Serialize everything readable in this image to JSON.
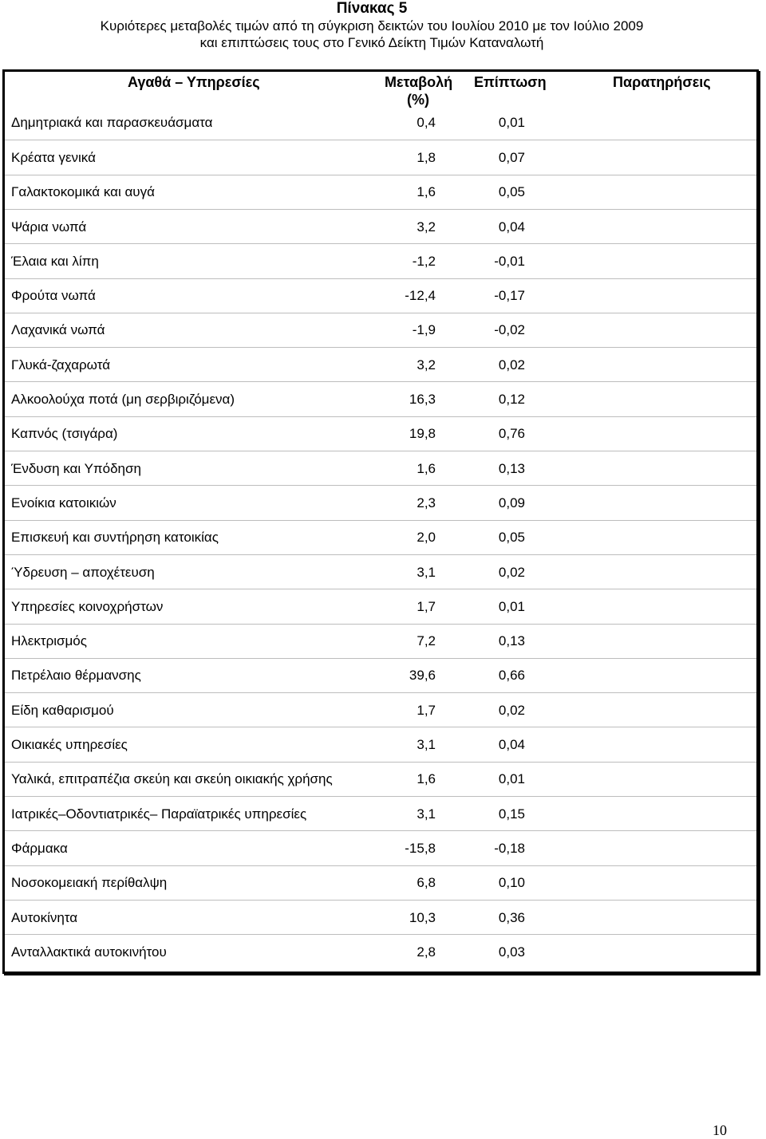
{
  "doc": {
    "title": "Πίνακας 5",
    "subtitle_line1": "Κυριότερες μεταβολές τιμών από τη σύγκριση δεικτών του Ιουλίου 2010 με τον Ιούλιο 2009",
    "subtitle_line2": "και επιπτώσεις τους στο Γενικό Δείκτη Τιμών Καταναλωτή",
    "page_number": "10"
  },
  "table": {
    "headers": {
      "goods": "Αγαθά – Υπηρεσίες",
      "change_line1": "Μεταβολή",
      "change_line2": "(%)",
      "impact": "Επίπτωση",
      "notes": "Παρατηρήσεις"
    },
    "rows": [
      {
        "name": "Δημητριακά και παρασκευάσματα",
        "change": "0,4",
        "impact": "0,01"
      },
      {
        "name": "Κρέατα γενικά",
        "change": "1,8",
        "impact": "0,07"
      },
      {
        "name": "Γαλακτοκομικά και αυγά",
        "change": "1,6",
        "impact": "0,05"
      },
      {
        "name": "Ψάρια νωπά",
        "change": "3,2",
        "impact": "0,04"
      },
      {
        "name": "Έλαια και λίπη",
        "change": "-1,2",
        "impact": "-0,01"
      },
      {
        "name": "Φρούτα νωπά",
        "change": "-12,4",
        "impact": "-0,17"
      },
      {
        "name": "Λαχανικά νωπά",
        "change": "-1,9",
        "impact": "-0,02"
      },
      {
        "name": "Γλυκά-ζαχαρωτά",
        "change": "3,2",
        "impact": "0,02"
      },
      {
        "name": "Αλκοολούχα ποτά (μη σερβιριζόμενα)",
        "change": "16,3",
        "impact": "0,12"
      },
      {
        "name": "Καπνός (τσιγάρα)",
        "change": "19,8",
        "impact": "0,76"
      },
      {
        "name": "Ένδυση και Υπόδηση",
        "change": "1,6",
        "impact": "0,13"
      },
      {
        "name": "Ενοίκια κατοικιών",
        "change": "2,3",
        "impact": "0,09"
      },
      {
        "name": "Επισκευή και συντήρηση κατοικίας",
        "change": "2,0",
        "impact": "0,05"
      },
      {
        "name": "Ύδρευση – αποχέτευση",
        "change": "3,1",
        "impact": "0,02"
      },
      {
        "name": "Υπηρεσίες κοινοχρήστων",
        "change": "1,7",
        "impact": "0,01"
      },
      {
        "name": "Ηλεκτρισμός",
        "change": "7,2",
        "impact": "0,13"
      },
      {
        "name": "Πετρέλαιο θέρμανσης",
        "change": "39,6",
        "impact": "0,66"
      },
      {
        "name": "Είδη καθαρισμού",
        "change": "1,7",
        "impact": "0,02"
      },
      {
        "name": "Οικιακές υπηρεσίες",
        "change": "3,1",
        "impact": "0,04"
      },
      {
        "name": "Υαλικά, επιτραπέζια σκεύη και σκεύη οικιακής χρήσης",
        "change": "1,6",
        "impact": "0,01"
      },
      {
        "name": "Ιατρικές–Οδοντιατρικές– Παραϊατρικές υπηρεσίες",
        "change": "3,1",
        "impact": "0,15"
      },
      {
        "name": "Φάρμακα",
        "change": "-15,8",
        "impact": "-0,18"
      },
      {
        "name": "Νοσοκομειακή περίθαλψη",
        "change": "6,8",
        "impact": "0,10"
      },
      {
        "name": "Αυτοκίνητα",
        "change": "10,3",
        "impact": "0,36"
      },
      {
        "name": "Ανταλλακτικά αυτοκινήτου",
        "change": "2,8",
        "impact": "0,03"
      }
    ]
  }
}
